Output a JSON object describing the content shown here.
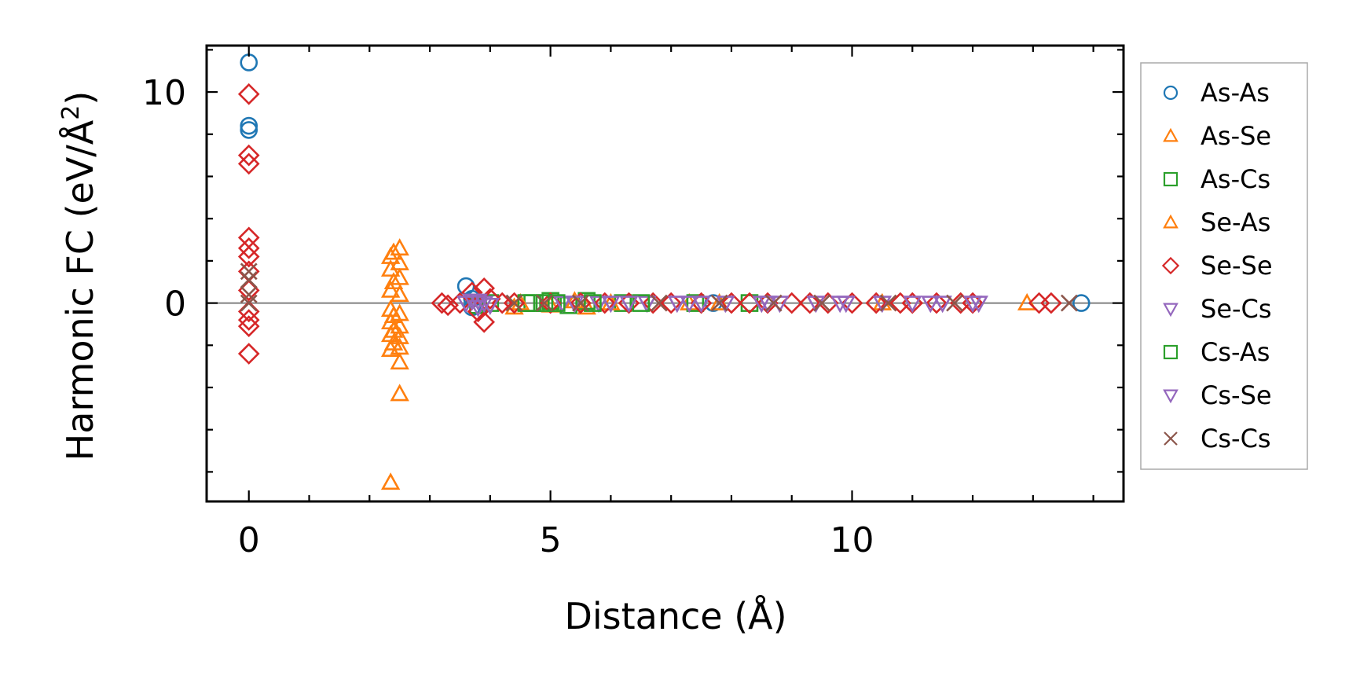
{
  "chart_data": {
    "type": "scatter",
    "xlabel": "Distance (Å)",
    "ylabel_main": "Harmonic FC (eV/Å",
    "ylabel_sup": "2",
    "ylabel_close": ")",
    "xlim": [
      -0.7,
      14.5
    ],
    "ylim": [
      -9.4,
      12.2
    ],
    "x_ticks": [
      0,
      5,
      10
    ],
    "x_tick_labels": [
      "0",
      "5",
      "10"
    ],
    "y_ticks": [
      0,
      10
    ],
    "y_tick_labels": [
      "0",
      "10"
    ],
    "x_minor_step": 1,
    "y_minor_step": 2,
    "zero_line": true,
    "grid": false,
    "legend_position": "outside right",
    "series": [
      {
        "name": "As-As",
        "marker": "circle",
        "color": "#1f77b4",
        "points": [
          [
            0,
            11.4
          ],
          [
            0,
            8.4
          ],
          [
            0,
            8.2
          ],
          [
            3.6,
            0.8
          ],
          [
            3.7,
            0.2
          ],
          [
            3.7,
            -0.2
          ],
          [
            7.7,
            0
          ],
          [
            13.8,
            0
          ]
        ]
      },
      {
        "name": "As-Se",
        "marker": "triangle-up",
        "color": "#ff7f0e",
        "points": [
          [
            2.35,
            2.2
          ],
          [
            2.35,
            1.6
          ],
          [
            2.35,
            0.6
          ],
          [
            2.35,
            -0.3
          ],
          [
            2.35,
            -0.9
          ],
          [
            2.35,
            -1.5
          ],
          [
            2.35,
            -2.2
          ],
          [
            2.35,
            -8.5
          ],
          [
            2.5,
            2.6
          ],
          [
            2.5,
            1.9
          ],
          [
            2.5,
            1.2
          ],
          [
            2.5,
            0.4
          ],
          [
            2.5,
            -0.5
          ],
          [
            2.5,
            -1.1
          ],
          [
            2.5,
            -1.6
          ],
          [
            2.5,
            -2.1
          ],
          [
            2.5,
            -2.8
          ],
          [
            2.5,
            -4.3
          ],
          [
            4.4,
            -0.2
          ],
          [
            5.0,
            -0.1
          ],
          [
            5.6,
            -0.2
          ],
          [
            7.3,
            0
          ],
          [
            12.9,
            0
          ]
        ]
      },
      {
        "name": "As-Cs",
        "marker": "square",
        "color": "#2ca02c",
        "points": [
          [
            3.8,
            -0.1
          ],
          [
            4.0,
            0
          ],
          [
            4.7,
            0
          ],
          [
            5.0,
            0.1
          ],
          [
            5.3,
            -0.1
          ],
          [
            5.6,
            0.1
          ],
          [
            6.2,
            0
          ],
          [
            7.4,
            0
          ],
          [
            8.3,
            0
          ]
        ]
      },
      {
        "name": "Se-As",
        "marker": "triangle-up",
        "color": "#ff7f0e",
        "points": [
          [
            2.4,
            2.4
          ],
          [
            2.4,
            1.0
          ],
          [
            2.4,
            -0.6
          ],
          [
            2.4,
            -1.3
          ],
          [
            2.4,
            -1.9
          ],
          [
            4.5,
            0
          ],
          [
            5.4,
            0.1
          ],
          [
            6.0,
            0
          ],
          [
            7.8,
            0
          ],
          [
            10.5,
            0
          ]
        ]
      },
      {
        "name": "Se-Se",
        "marker": "diamond",
        "color": "#d62728",
        "points": [
          [
            0,
            9.9
          ],
          [
            0,
            7.0
          ],
          [
            0,
            6.6
          ],
          [
            0,
            3.1
          ],
          [
            0,
            2.6
          ],
          [
            0,
            2.2
          ],
          [
            0,
            1.5
          ],
          [
            0,
            0.6
          ],
          [
            0,
            -0.4
          ],
          [
            0,
            -0.8
          ],
          [
            0,
            -1.1
          ],
          [
            0,
            -2.4
          ],
          [
            3.2,
            0
          ],
          [
            3.3,
            -0.1
          ],
          [
            3.5,
            0
          ],
          [
            3.7,
            0.5
          ],
          [
            3.8,
            -0.4
          ],
          [
            3.9,
            0.7
          ],
          [
            3.9,
            -0.9
          ],
          [
            4.0,
            0.2
          ],
          [
            4.2,
            0
          ],
          [
            4.4,
            0
          ],
          [
            5.0,
            0
          ],
          [
            5.5,
            0
          ],
          [
            5.9,
            0
          ],
          [
            6.3,
            0
          ],
          [
            6.7,
            0
          ],
          [
            7.0,
            0
          ],
          [
            7.5,
            0
          ],
          [
            8.0,
            0
          ],
          [
            8.3,
            0
          ],
          [
            8.6,
            0
          ],
          [
            9.0,
            0
          ],
          [
            9.3,
            0
          ],
          [
            9.6,
            0
          ],
          [
            10.0,
            0
          ],
          [
            10.4,
            0
          ],
          [
            10.8,
            0
          ],
          [
            11.0,
            0
          ],
          [
            11.4,
            0
          ],
          [
            11.8,
            0
          ],
          [
            12.0,
            0
          ],
          [
            13.1,
            0
          ],
          [
            13.3,
            0
          ]
        ]
      },
      {
        "name": "Se-Cs",
        "marker": "triangle-down",
        "color": "#9467bd",
        "points": [
          [
            3.7,
            0.1
          ],
          [
            3.8,
            -0.2
          ],
          [
            3.9,
            0
          ],
          [
            4.0,
            -0.1
          ],
          [
            5.2,
            0
          ],
          [
            5.8,
            0
          ],
          [
            6.0,
            0
          ],
          [
            6.6,
            0
          ],
          [
            7.1,
            0
          ],
          [
            7.5,
            0
          ],
          [
            7.9,
            0
          ],
          [
            8.5,
            0
          ],
          [
            8.8,
            0
          ],
          [
            9.4,
            0
          ],
          [
            9.8,
            0
          ],
          [
            10.5,
            0
          ],
          [
            11.0,
            0
          ],
          [
            11.5,
            0
          ],
          [
            12.1,
            0
          ]
        ]
      },
      {
        "name": "Cs-As",
        "marker": "square",
        "color": "#2ca02c",
        "points": [
          [
            4.6,
            0
          ],
          [
            4.9,
            0
          ],
          [
            5.1,
            0
          ],
          [
            5.7,
            0
          ],
          [
            6.5,
            0
          ]
        ]
      },
      {
        "name": "Cs-Se",
        "marker": "triangle-down",
        "color": "#9467bd",
        "points": [
          [
            3.6,
            0
          ],
          [
            3.8,
            0.1
          ],
          [
            5.4,
            0
          ],
          [
            6.3,
            0
          ],
          [
            7.3,
            0
          ],
          [
            8.6,
            0
          ],
          [
            9.9,
            0
          ],
          [
            11.3,
            0
          ],
          [
            12.0,
            0
          ]
        ]
      },
      {
        "name": "Cs-Cs",
        "marker": "x",
        "color": "#8c564b",
        "points": [
          [
            0,
            1.5
          ],
          [
            0,
            1.1
          ],
          [
            0,
            0.4
          ],
          [
            0,
            0
          ],
          [
            4.4,
            0
          ],
          [
            4.9,
            0
          ],
          [
            5.5,
            0
          ],
          [
            6.8,
            0
          ],
          [
            7.8,
            0
          ],
          [
            8.7,
            0
          ],
          [
            9.5,
            0
          ],
          [
            10.6,
            0
          ],
          [
            11.7,
            0
          ],
          [
            13.6,
            0
          ]
        ]
      }
    ]
  }
}
